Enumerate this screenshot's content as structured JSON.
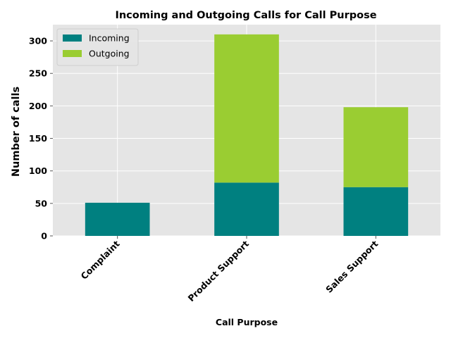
{
  "chart_data": {
    "type": "bar",
    "stacked": true,
    "title": "Incoming and Outgoing Calls for Call Purpose",
    "xlabel": "Call Purpose",
    "ylabel": "Number of calls",
    "categories": [
      "Complaint",
      "Product Support",
      "Sales Support"
    ],
    "series": [
      {
        "name": "Incoming",
        "values": [
          51,
          82,
          75
        ],
        "color": "#008080"
      },
      {
        "name": "Outgoing",
        "values": [
          0,
          228,
          123
        ],
        "color": "#9acd32"
      }
    ],
    "ylim": [
      0,
      325
    ],
    "yticks": [
      0,
      50,
      100,
      150,
      200,
      250,
      300
    ],
    "grid": true,
    "legend_position": "top-left",
    "background_color": "#e5e5e5",
    "grid_color": "#ffffff"
  }
}
